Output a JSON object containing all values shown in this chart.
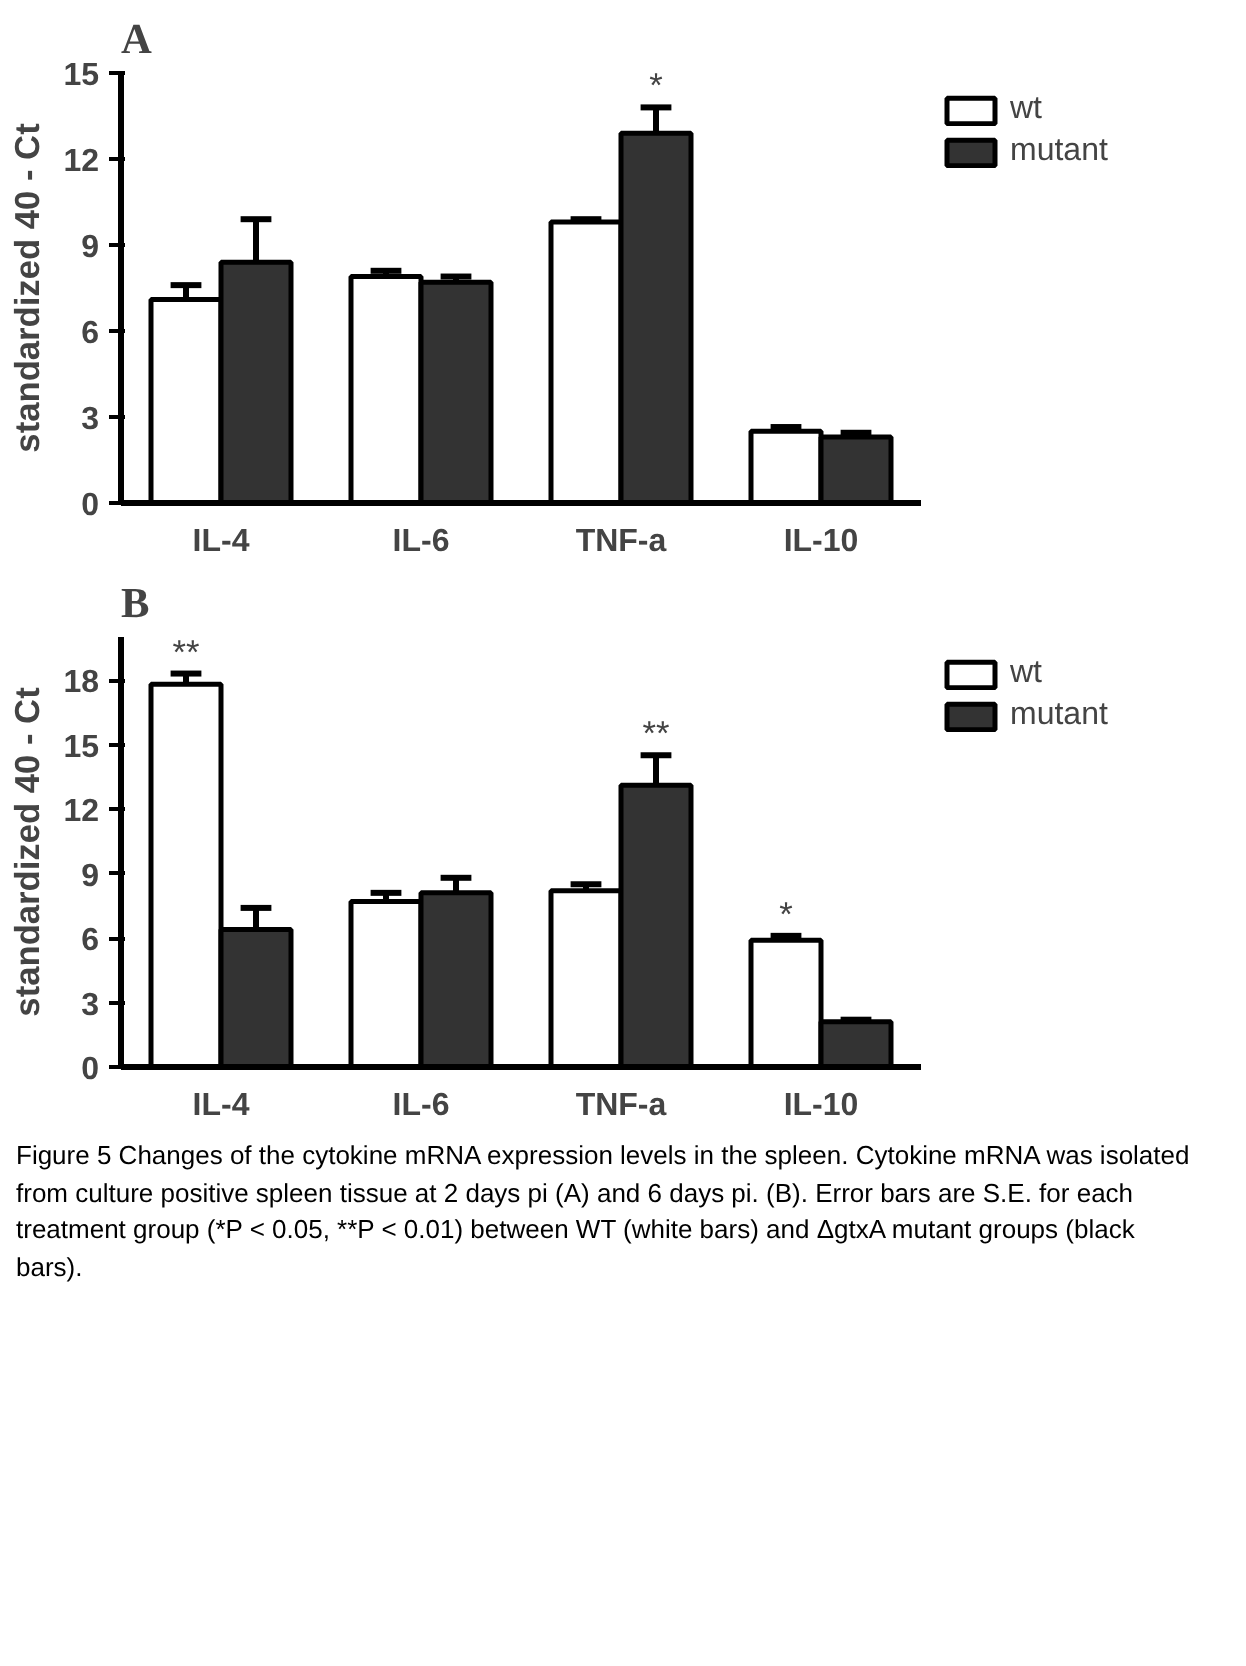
{
  "chart_data": [
    {
      "type": "bar",
      "title": "A",
      "ylabel": "standardized 40 - Ct",
      "categories": [
        "IL-4",
        "IL-6",
        "TNF-a",
        "IL-10"
      ],
      "series": [
        {
          "name": "wt",
          "color": "#ffffff",
          "values": [
            7.1,
            7.9,
            9.8,
            2.5
          ],
          "errors": [
            0.5,
            0.2,
            0.1,
            0.15
          ]
        },
        {
          "name": "mutant",
          "color": "#333333",
          "values": [
            8.4,
            7.7,
            12.9,
            2.3
          ],
          "errors": [
            1.5,
            0.2,
            0.9,
            0.15
          ],
          "value_labels": [
            null,
            null,
            "*",
            null
          ]
        }
      ],
      "ylim": [
        0,
        15
      ],
      "yticks": [
        0,
        3,
        6,
        9,
        12,
        15
      ],
      "grid": false,
      "legend": "right"
    },
    {
      "type": "bar",
      "title": "B",
      "ylabel": "standardized 40 - Ct",
      "categories": [
        "IL-4",
        "IL-6",
        "TNF-a",
        "IL-10"
      ],
      "series": [
        {
          "name": "wt",
          "color": "#ffffff",
          "values": [
            17.8,
            7.7,
            8.2,
            5.9
          ],
          "errors": [
            0.5,
            0.4,
            0.3,
            0.2
          ],
          "value_labels": [
            "**",
            null,
            null,
            "*"
          ]
        },
        {
          "name": "mutant",
          "color": "#333333",
          "values": [
            6.4,
            8.1,
            13.1,
            2.1
          ],
          "errors": [
            1.0,
            0.7,
            1.4,
            0.1
          ],
          "value_labels": [
            null,
            null,
            "**",
            null
          ]
        }
      ],
      "ylim": [
        0,
        20
      ],
      "yticks": [
        0,
        3,
        6,
        9,
        12,
        15,
        18
      ],
      "grid": false,
      "legend": "right",
      "annotations": [
        "Figure 5  Changes of the cytokine mRNA expression levels in the spleen. Cytokine mRNA was isolated from culture positive spleen tissue at 2 days pi (A) and 6 days pi. (B). Error bars are S.E. for each treatment group (*P < 0.05, **P < 0.01) between WT (white bars) and ΔgtxA mutant groups (black bars)."
      ]
    }
  ]
}
